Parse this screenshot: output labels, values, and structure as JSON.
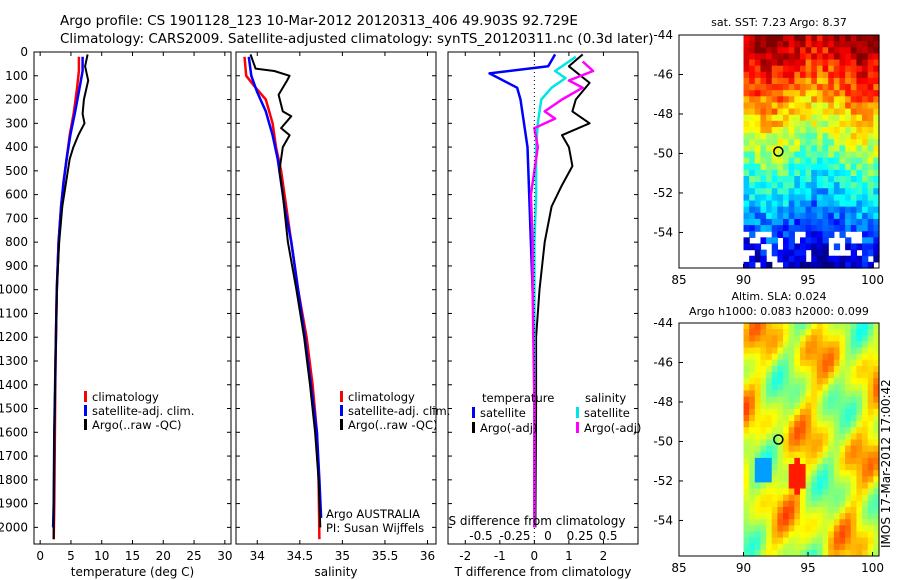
{
  "header": {
    "line1": "Argo profile: CS 1901128_123 10-Mar-2012 20120313_406 49.903S 92.729E",
    "line2": "Climatology: CARS2009. Satellite-adjusted climatology: synTS_20120311.nc (0.3d later)"
  },
  "colors": {
    "clim": "#ff0000",
    "sat": "#0000ff",
    "argo": "#000000",
    "cyan": "#00e5e5",
    "magenta": "#ff00ff"
  },
  "depth_ticks": [
    "0",
    "100",
    "200",
    "300",
    "400",
    "500",
    "600",
    "700",
    "800",
    "900",
    "1000",
    "1100",
    "1200",
    "1300",
    "1400",
    "1500",
    "1600",
    "1700",
    "1800",
    "1900",
    "2000"
  ],
  "chart_data": [
    {
      "type": "line",
      "name": "temperature",
      "xlabel": "temperature (deg C)",
      "xlim": [
        -1,
        31
      ],
      "ylim": [
        2070,
        0
      ],
      "xticks": [
        0,
        5,
        10,
        15,
        20,
        25,
        30
      ],
      "legend": [
        "climatology",
        "satellite-adj. clim.",
        "Argo(..raw -QC)"
      ],
      "series": [
        {
          "name": "climatology",
          "color": "clim",
          "points": [
            [
              6.3,
              20
            ],
            [
              6.3,
              80
            ],
            [
              6.0,
              150
            ],
            [
              5.5,
              250
            ],
            [
              4.8,
              350
            ],
            [
              4.3,
              450
            ],
            [
              3.8,
              550
            ],
            [
              3.4,
              650
            ],
            [
              3.0,
              800
            ],
            [
              2.7,
              1000
            ],
            [
              2.5,
              1300
            ],
            [
              2.4,
              1600
            ],
            [
              2.3,
              1900
            ],
            [
              2.2,
              2050
            ]
          ]
        },
        {
          "name": "satellite-adj. clim.",
          "color": "sat",
          "points": [
            [
              6.9,
              20
            ],
            [
              6.9,
              80
            ],
            [
              6.4,
              150
            ],
            [
              5.7,
              250
            ],
            [
              4.9,
              350
            ],
            [
              4.3,
              450
            ],
            [
              3.8,
              550
            ],
            [
              3.4,
              650
            ],
            [
              3.0,
              800
            ],
            [
              2.7,
              1000
            ],
            [
              2.5,
              1300
            ],
            [
              2.3,
              1600
            ],
            [
              2.2,
              1900
            ],
            [
              2.1,
              2000
            ]
          ]
        },
        {
          "name": "Argo(..raw -QC)",
          "color": "argo",
          "points": [
            [
              7.7,
              10
            ],
            [
              7.3,
              60
            ],
            [
              7.8,
              120
            ],
            [
              7.1,
              200
            ],
            [
              6.9,
              260
            ],
            [
              7.2,
              300
            ],
            [
              6.2,
              350
            ],
            [
              5.4,
              400
            ],
            [
              4.8,
              450
            ],
            [
              4.2,
              550
            ],
            [
              3.6,
              650
            ],
            [
              3.1,
              800
            ],
            [
              2.7,
              1000
            ],
            [
              2.5,
              1300
            ],
            [
              2.3,
              1600
            ],
            [
              2.2,
              1900
            ],
            [
              2.2,
              2050
            ]
          ]
        }
      ]
    },
    {
      "type": "line",
      "name": "salinity",
      "xlabel": "salinity",
      "xlim": [
        33.75,
        36.1
      ],
      "ylim": [
        2070,
        0
      ],
      "xticks": [
        34,
        34.5,
        35,
        35.5,
        36
      ],
      "legend": [
        "climatology",
        "satellite-adj. clim.",
        "Argo(..raw -QC)"
      ],
      "annotation": [
        "Argo AUSTRALIA",
        "PI: Susan Wijffels"
      ],
      "series": [
        {
          "name": "climatology",
          "color": "clim",
          "points": [
            [
              33.85,
              20
            ],
            [
              33.87,
              100
            ],
            [
              33.98,
              150
            ],
            [
              34.1,
              200
            ],
            [
              34.18,
              300
            ],
            [
              34.22,
              400
            ],
            [
              34.28,
              500
            ],
            [
              34.32,
              600
            ],
            [
              34.4,
              800
            ],
            [
              34.48,
              1000
            ],
            [
              34.58,
              1200
            ],
            [
              34.65,
              1400
            ],
            [
              34.7,
              1600
            ],
            [
              34.72,
              1800
            ],
            [
              34.73,
              2050
            ]
          ]
        },
        {
          "name": "satellite-adj. clim.",
          "color": "sat",
          "points": [
            [
              33.9,
              20
            ],
            [
              33.93,
              100
            ],
            [
              34.0,
              170
            ],
            [
              34.1,
              250
            ],
            [
              34.18,
              350
            ],
            [
              34.24,
              450
            ],
            [
              34.28,
              550
            ],
            [
              34.32,
              650
            ],
            [
              34.4,
              800
            ],
            [
              34.48,
              1000
            ],
            [
              34.56,
              1200
            ],
            [
              34.63,
              1400
            ],
            [
              34.7,
              1600
            ],
            [
              34.73,
              1800
            ],
            [
              34.75,
              1960
            ]
          ]
        },
        {
          "name": "Argo(..raw -QC)",
          "color": "argo",
          "points": [
            [
              33.92,
              10
            ],
            [
              33.98,
              70
            ],
            [
              34.2,
              80
            ],
            [
              34.38,
              100
            ],
            [
              34.35,
              120
            ],
            [
              34.25,
              180
            ],
            [
              34.3,
              250
            ],
            [
              34.4,
              270
            ],
            [
              34.28,
              320
            ],
            [
              34.38,
              350
            ],
            [
              34.3,
              400
            ],
            [
              34.26,
              500
            ],
            [
              34.3,
              600
            ],
            [
              34.36,
              800
            ],
            [
              34.46,
              1000
            ],
            [
              34.55,
              1200
            ],
            [
              34.62,
              1400
            ],
            [
              34.68,
              1600
            ],
            [
              34.72,
              1800
            ],
            [
              34.74,
              2000
            ]
          ]
        }
      ]
    },
    {
      "type": "line",
      "name": "differences",
      "xlabel": "T difference from climatology",
      "xlabel2": "S difference from climatology",
      "xlim": [
        -2.5,
        3.0
      ],
      "ylim": [
        2070,
        0
      ],
      "xticks": [
        "-2",
        "-1",
        "0",
        "1",
        "2"
      ],
      "xticks_s": [
        "-0.5",
        "-0.25",
        "0",
        "0.25",
        "0.5"
      ],
      "legend_headers": [
        "temperature",
        "salinity"
      ],
      "legend": [
        "satellite",
        "Argo(-adj)",
        "satellite",
        "Argo(-adj)"
      ],
      "series": [
        {
          "name": "T satellite",
          "color": "sat",
          "points": [
            [
              0.6,
              10
            ],
            [
              0.4,
              60
            ],
            [
              -1.3,
              90
            ],
            [
              -0.5,
              150
            ],
            [
              -0.4,
              200
            ],
            [
              -0.3,
              300
            ],
            [
              -0.2,
              400
            ],
            [
              -0.15,
              600
            ],
            [
              -0.1,
              800
            ],
            [
              -0.05,
              1000
            ],
            [
              0.0,
              1200
            ],
            [
              0.0,
              1500
            ],
            [
              0.0,
              2000
            ]
          ]
        },
        {
          "name": "T Argo(-adj)",
          "color": "argo",
          "points": [
            [
              1.4,
              10
            ],
            [
              1.0,
              60
            ],
            [
              1.6,
              130
            ],
            [
              1.2,
              200
            ],
            [
              1.1,
              250
            ],
            [
              1.6,
              300
            ],
            [
              0.8,
              350
            ],
            [
              1.0,
              400
            ],
            [
              1.1,
              480
            ],
            [
              0.8,
              560
            ],
            [
              0.5,
              650
            ],
            [
              0.3,
              800
            ],
            [
              0.15,
              1000
            ],
            [
              0.05,
              1200
            ],
            [
              0.05,
              1500
            ],
            [
              0.03,
              2000
            ]
          ]
        },
        {
          "name": "S satellite",
          "color": "cyan",
          "points": [
            [
              1.2,
              20
            ],
            [
              0.6,
              80
            ],
            [
              0.9,
              110
            ],
            [
              0.5,
              150
            ],
            [
              0.2,
              200
            ],
            [
              0.1,
              300
            ],
            [
              0.05,
              400
            ],
            [
              0.05,
              600
            ],
            [
              0.0,
              800
            ],
            [
              0.0,
              1000
            ],
            [
              0.0,
              1500
            ],
            [
              0.0,
              2000
            ]
          ]
        },
        {
          "name": "S Argo(-adj)",
          "color": "magenta",
          "points": [
            [
              1.4,
              40
            ],
            [
              1.7,
              80
            ],
            [
              1.0,
              120
            ],
            [
              1.4,
              150
            ],
            [
              0.8,
              200
            ],
            [
              0.3,
              250
            ],
            [
              0.6,
              280
            ],
            [
              0.0,
              320
            ],
            [
              0.1,
              400
            ],
            [
              0.0,
              500
            ],
            [
              -0.1,
              600
            ],
            [
              -0.05,
              800
            ],
            [
              -0.05,
              1000
            ],
            [
              0.0,
              1500
            ],
            [
              0.0,
              2000
            ]
          ]
        }
      ]
    },
    {
      "type": "heatmap",
      "name": "satellite SST map",
      "title": "sat. SST: 7.23  Argo: 8.37",
      "xlim": [
        85,
        100.5
      ],
      "ylim": [
        -55.8,
        -44
      ],
      "xticks": [
        85,
        90,
        95,
        100
      ],
      "yticks": [
        -44,
        -46,
        -48,
        -50,
        -52,
        -54
      ],
      "data_region_x": [
        90,
        100.5
      ],
      "marker": {
        "lon": 92.7,
        "lat": -49.9
      }
    },
    {
      "type": "heatmap",
      "name": "altimetry SLA map",
      "title": "Altim. SLA: 0.024",
      "subtitle": "Argo h1000: 0.083 h2000: 0.099",
      "xlim": [
        85,
        100.5
      ],
      "ylim": [
        -55.8,
        -44
      ],
      "xticks": [
        85,
        90,
        95,
        100
      ],
      "yticks": [
        -44,
        -46,
        -48,
        -50,
        -52,
        -54
      ],
      "data_region_x": [
        90,
        100.5
      ],
      "marker": {
        "lon": 92.7,
        "lat": -49.9
      }
    }
  ],
  "footer": {
    "stamp": "IMOS 17-Mar-2012 17:00:42"
  }
}
